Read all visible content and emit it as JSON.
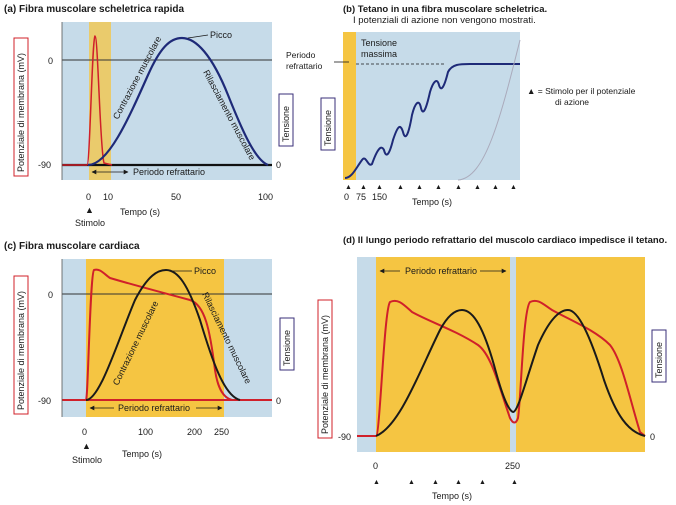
{
  "panel_a": {
    "title": "(a) Fibra muscolare scheletrica rapida",
    "ylabel": "Potenziale di membrana (mV)",
    "tension_label": "Tensione",
    "y_ticks": [
      "0",
      "-90"
    ],
    "tension_zero": "0",
    "x_ticks": [
      "0",
      "10",
      "50",
      "100"
    ],
    "xlabel": "Tempo (s)",
    "stimulus": "Stimolo",
    "peak": "Picco",
    "contraction": "Contrazione muscolare",
    "relaxation": "Rilasciamento muscolare",
    "refractory": "Periodo refrattario"
  },
  "panel_b": {
    "title_line1": "(b) Tetano in una fibra muscolare scheletrica.",
    "title_line2": "I potenziali di azione non vengono mostrati.",
    "refractory_line1": "Periodo",
    "refractory_line2": "refrattario",
    "max_tension_line1": "Tensione",
    "max_tension_line2": "massima",
    "tension_label": "Tensione",
    "x_ticks": [
      "0",
      "75",
      "150"
    ],
    "xlabel": "Tempo (s)",
    "legend_line1": "▲ = Stimolo per il potenziale",
    "legend_line2": "di azione"
  },
  "panel_c": {
    "title": "(c) Fibra muscolare cardiaca",
    "ylabel": "Potenziale di membrana (mV)",
    "tension_label": "Tensione",
    "y_ticks": [
      "0",
      "-90"
    ],
    "tension_zero": "0",
    "x_ticks": [
      "0",
      "100",
      "200",
      "250"
    ],
    "xlabel": "Tempo (s)",
    "stimulus": "Stimolo",
    "peak": "Picco",
    "contraction": "Contrazione muscolare",
    "relaxation": "Rilasciamento muscolare",
    "refractory": "Periodo refrattario"
  },
  "panel_d": {
    "title": "(d) Il lungo periodo refrattario del muscolo cardiaco impedisce il tetano.",
    "ylabel": "Potenziale di membrana (mV)",
    "tension_label": "Tensione",
    "y_tick": "-90",
    "tension_zero": "0",
    "x_ticks": [
      "0",
      "250"
    ],
    "xlabel": "Tempo (s)",
    "refractory": "Periodo refrattario"
  },
  "colors": {
    "panel_bg": "#c6dbe9",
    "refractory_fill": "#f5c542",
    "membrane_curve": "#d0202a",
    "tension_curve": "#1e2a78",
    "label_box_red": "#d0202a",
    "label_box_navy": "#3a2f7a"
  }
}
